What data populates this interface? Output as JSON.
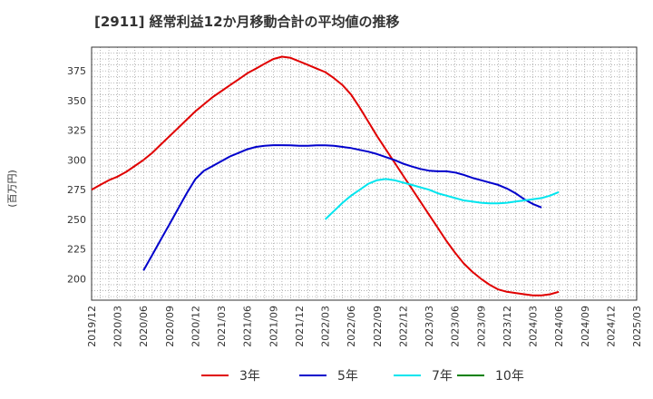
{
  "chart_data": {
    "type": "line",
    "title": "[2911]  経常利益12か月移動合計の平均値の推移",
    "ylabel": "(百万円)",
    "xlabel": "",
    "ylim": [
      182,
      395
    ],
    "yticks": [
      200,
      225,
      250,
      275,
      300,
      325,
      350,
      375
    ],
    "xticks": [
      "2019/12",
      "2020/03",
      "2020/06",
      "2020/09",
      "2020/12",
      "2021/03",
      "2021/06",
      "2021/09",
      "2021/12",
      "2022/03",
      "2022/06",
      "2022/09",
      "2022/12",
      "2023/03",
      "2023/06",
      "2023/09",
      "2023/12",
      "2024/03",
      "2024/06",
      "2024/09",
      "2024/12",
      "2025/03"
    ],
    "grid": true,
    "legend_position": "bottom",
    "series": [
      {
        "name": "3年",
        "color": "#e00000",
        "start_index": 0,
        "values": [
          275,
          279,
          283,
          286,
          290,
          295,
          300,
          306,
          313,
          320,
          327,
          334,
          341,
          347,
          353,
          358,
          363,
          368,
          373,
          377,
          381,
          385,
          387,
          386,
          383,
          380,
          377,
          374,
          369,
          363,
          355,
          344,
          332,
          320,
          309,
          298,
          287,
          276,
          265,
          254,
          243,
          232,
          222,
          213,
          206,
          200,
          195,
          191,
          189,
          188,
          187,
          186,
          186,
          187,
          189
        ]
      },
      {
        "name": "5年",
        "color": "#0000cc",
        "start_index": 6,
        "values": [
          207,
          220,
          233,
          246,
          259,
          272,
          284,
          291,
          295,
          299,
          303,
          306,
          309,
          311,
          312,
          312.5,
          312.5,
          312.3,
          312,
          312,
          312.3,
          312.3,
          312,
          311,
          310,
          308.5,
          307,
          305,
          302.5,
          300,
          297,
          294.5,
          292.5,
          291,
          290.5,
          290.5,
          289.5,
          287.5,
          285,
          283,
          281,
          279,
          276,
          272,
          267,
          263,
          260
        ]
      },
      {
        "name": "7年",
        "color": "#00e5ee",
        "start_index": 27,
        "values": [
          250,
          257,
          264,
          270,
          275,
          280,
          283,
          284,
          283,
          281,
          279,
          277,
          275,
          272,
          270,
          268,
          266,
          265,
          264,
          263.5,
          263.5,
          264,
          265,
          266,
          267,
          268,
          270,
          273
        ]
      },
      {
        "name": "10年",
        "color": "#008000",
        "start_index": 0,
        "values": []
      }
    ]
  }
}
